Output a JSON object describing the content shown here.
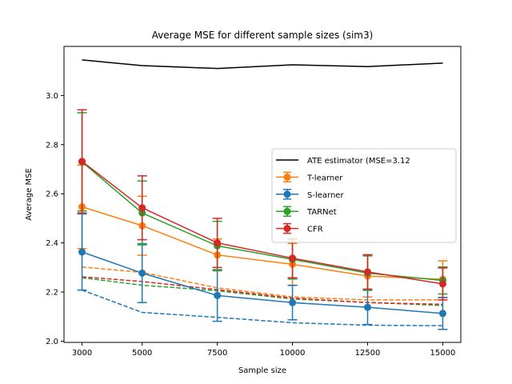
{
  "chart_data": {
    "type": "line",
    "title": "Average MSE for different sample sizes (sim3)",
    "xlabel": "Sample size",
    "ylabel": "Average MSE",
    "x": [
      3000,
      5000,
      7500,
      10000,
      12500,
      15000
    ],
    "xlim": [
      2400,
      15600
    ],
    "ylim": [
      1.995,
      3.2
    ],
    "yticks": [
      2.0,
      2.2,
      2.4,
      2.6,
      2.8,
      3.0
    ],
    "ytick_labels": [
      "2.0",
      "2.2",
      "2.4",
      "2.6",
      "2.8",
      "3.0"
    ],
    "xtick_labels": [
      "3000",
      "5000",
      "7500",
      "10000",
      "12500",
      "15000"
    ],
    "legend": {
      "placement": "center-right"
    },
    "series": [
      {
        "name": "ATE estimator (MSE=3.12",
        "color": "#000000",
        "style": "solid",
        "marker": false,
        "values": [
          3.145,
          3.122,
          3.11,
          3.125,
          3.118,
          3.132
        ]
      },
      {
        "name": "T-learner",
        "color": "#ff7f0e",
        "style": "solid",
        "marker": true,
        "values": [
          2.547,
          2.47,
          2.351,
          2.313,
          2.265,
          2.252
        ],
        "errors": [
          0.17,
          0.12,
          0.065,
          0.085,
          0.085,
          0.075
        ]
      },
      {
        "name": "S-learner",
        "color": "#1f77b4",
        "style": "solid",
        "marker": true,
        "values": [
          2.363,
          2.277,
          2.186,
          2.157,
          2.138,
          2.113
        ],
        "errors": [
          0.155,
          0.12,
          0.105,
          0.07,
          0.07,
          0.065
        ]
      },
      {
        "name": "TARNet",
        "color": "#2ca02c",
        "style": "solid",
        "marker": true,
        "values": [
          2.73,
          2.522,
          2.388,
          2.333,
          2.277,
          2.247
        ],
        "errors": [
          0.2,
          0.13,
          0.1,
          0.08,
          0.07,
          0.055
        ]
      },
      {
        "name": "CFR",
        "color": "#d62728",
        "style": "solid",
        "marker": true,
        "values": [
          2.732,
          2.543,
          2.4,
          2.338,
          2.282,
          2.233
        ],
        "errors": [
          0.21,
          0.13,
          0.1,
          0.08,
          0.07,
          0.065
        ]
      },
      {
        "name": "",
        "color": "#ff7f0e",
        "style": "dashed",
        "marker": false,
        "values": [
          2.302,
          2.28,
          2.217,
          2.18,
          2.168,
          2.168
        ]
      },
      {
        "name": "",
        "color": "#1f77b4",
        "style": "dashed",
        "marker": false,
        "values": [
          2.208,
          2.117,
          2.097,
          2.075,
          2.065,
          2.063
        ]
      },
      {
        "name": "",
        "color": "#2ca02c",
        "style": "dashed",
        "marker": false,
        "values": [
          2.258,
          2.228,
          2.205,
          2.172,
          2.158,
          2.145
        ]
      },
      {
        "name": "",
        "color": "#d62728",
        "style": "dashed",
        "marker": false,
        "values": [
          2.262,
          2.243,
          2.21,
          2.175,
          2.157,
          2.15
        ]
      }
    ]
  }
}
